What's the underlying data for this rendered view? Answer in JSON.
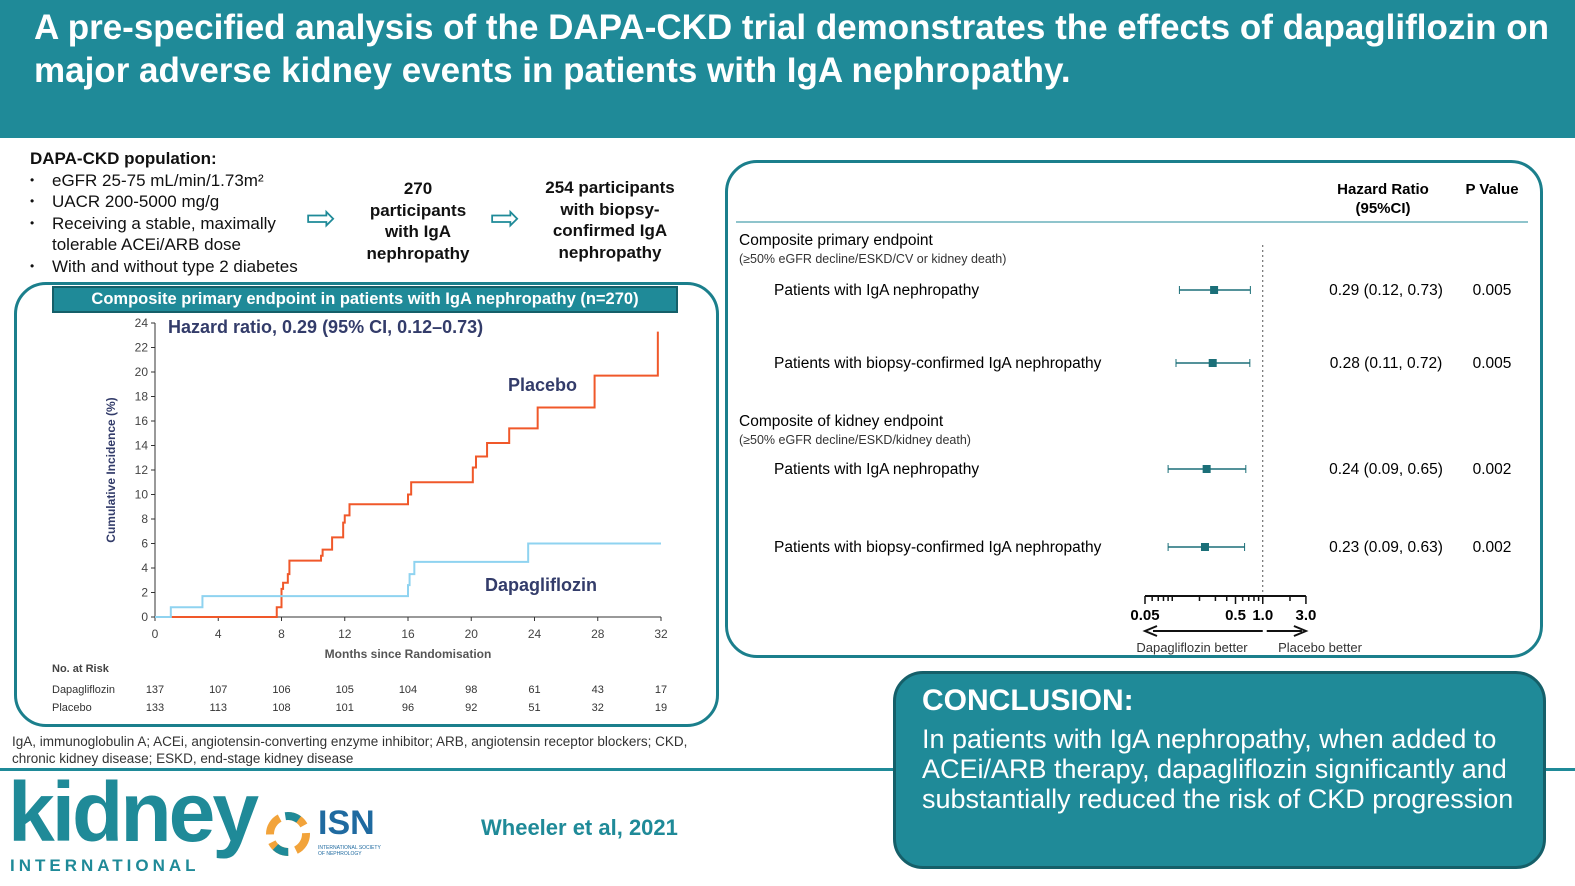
{
  "header": {
    "title": "A pre-specified analysis of the DAPA-CKD trial demonstrates the effects of dapagliflozin on major adverse kidney events in patients with IgA nephropathy."
  },
  "population": {
    "heading": "DAPA-CKD population:",
    "items": [
      "eGFR 25-75 mL/min/1.73m²",
      "UACR 200-5000 mg/g",
      "Receiving a stable, maximally tolerable ACEi/ARB dose",
      "With and without type 2 diabetes"
    ]
  },
  "flow": {
    "step1": "270 participants with IgA nephropathy",
    "step2": "254 participants with biopsy-confirmed IgA nephropathy",
    "arrow_icon": "right-arrow-icon"
  },
  "km": {
    "panel_title": "Composite primary endpoint in patients with IgA nephropathy (n=270)",
    "risk_heading": "No. at Risk",
    "risk": [
      {
        "name": "Dapagliflozin",
        "values": [
          137,
          107,
          106,
          105,
          104,
          98,
          61,
          43,
          17
        ]
      },
      {
        "name": "Placebo",
        "values": [
          133,
          113,
          108,
          101,
          96,
          92,
          51,
          32,
          19
        ]
      }
    ]
  },
  "chart_data": [
    {
      "type": "line",
      "title": "Hazard ratio, 0.29 (95% CI, 0.12–0.73)",
      "xlabel": "Months since Randomisation",
      "ylabel": "Cumulative Incidence (%)",
      "xlim": [
        0,
        32
      ],
      "ylim": [
        0,
        24
      ],
      "xticks": [
        0,
        4,
        8,
        12,
        16,
        20,
        24,
        28,
        32
      ],
      "yticks": [
        0,
        2,
        4,
        6,
        8,
        10,
        12,
        14,
        16,
        18,
        20,
        22,
        24
      ],
      "step": true,
      "series": [
        {
          "name": "Placebo",
          "color": "#f0582a",
          "points": [
            [
              1,
              0
            ],
            [
              7.7,
              0.8
            ],
            [
              8,
              2.3
            ],
            [
              8.1,
              2.8
            ],
            [
              8.4,
              3.5
            ],
            [
              8.5,
              4.6
            ],
            [
              10.5,
              5
            ],
            [
              10.6,
              5.5
            ],
            [
              11.2,
              6.5
            ],
            [
              11.9,
              7.7
            ],
            [
              12,
              8.3
            ],
            [
              12.3,
              9.2
            ],
            [
              16,
              10
            ],
            [
              16.2,
              11
            ],
            [
              20.1,
              12.2
            ],
            [
              20.3,
              13.1
            ],
            [
              21,
              14.2
            ],
            [
              22.4,
              15.4
            ],
            [
              24.2,
              17.1
            ],
            [
              27.8,
              19.7
            ],
            [
              31.8,
              23.3
            ]
          ]
        },
        {
          "name": "Dapagliflozin",
          "color": "#8fd3f0",
          "points": [
            [
              0,
              0
            ],
            [
              1,
              0.8
            ],
            [
              3,
              1.7
            ],
            [
              16,
              2.6
            ],
            [
              16.1,
              3.5
            ],
            [
              16.4,
              4.5
            ],
            [
              23.6,
              6
            ],
            [
              32,
              6
            ]
          ]
        }
      ]
    },
    {
      "type": "forest",
      "xscale": "log",
      "xticks": [
        "0.05",
        "0.5",
        "1.0",
        "3.0"
      ],
      "xlim": [
        0.05,
        3.0
      ],
      "reference": 1.0,
      "columns": [
        "Hazard Ratio (95%CI)",
        "P Value"
      ],
      "left_label": "Dapagliflozin better",
      "right_label": "Placebo better",
      "groups": [
        {
          "title": "Composite primary endpoint",
          "subtitle": "(≥50% eGFR decline/ESKD/CV or kidney death)",
          "rows": [
            {
              "label": "Patients with IgA nephropathy",
              "hr": 0.29,
              "lo": 0.12,
              "hi": 0.73,
              "text": "0.29 (0.12, 0.73)",
              "p": "0.005"
            },
            {
              "label": "Patients with biopsy-confirmed IgA nephropathy",
              "hr": 0.28,
              "lo": 0.11,
              "hi": 0.72,
              "text": "0.28 (0.11, 0.72)",
              "p": "0.005"
            }
          ]
        },
        {
          "title": "Composite of kidney endpoint",
          "subtitle": "(≥50% eGFR decline/ESKD/kidney death)",
          "rows": [
            {
              "label": "Patients with IgA nephropathy",
              "hr": 0.24,
              "lo": 0.09,
              "hi": 0.65,
              "text": "0.24 (0.09, 0.65)",
              "p": "0.002"
            },
            {
              "label": "Patients with biopsy-confirmed IgA nephropathy",
              "hr": 0.23,
              "lo": 0.09,
              "hi": 0.63,
              "text": "0.23 (0.09, 0.63)",
              "p": "0.002"
            }
          ]
        }
      ]
    }
  ],
  "footnote": "IgA, immunoglobulin A; ACEi, angiotensin-converting enzyme inhibitor; ARB, angiotensin receptor blockers; CKD, chronic kidney disease; ESKD, end-stage kidney disease",
  "logos": {
    "kidney": "kidney",
    "international": "INTERNATIONAL",
    "isn": "ISN",
    "isn_sub": "INTERNATIONAL SOCIETY OF NEPHROLOGY"
  },
  "citation": "Wheeler et al, 2021",
  "conclusion": {
    "heading": "CONCLUSION:",
    "text": "In patients with IgA nephropathy, when added to ACEi/ARB therapy, dapagliflozin significantly and substantially reduced the risk of CKD progression"
  },
  "colors": {
    "teal": "#1f8a98",
    "placebo": "#f0582a",
    "dapagliflozin": "#8fd3f0"
  }
}
